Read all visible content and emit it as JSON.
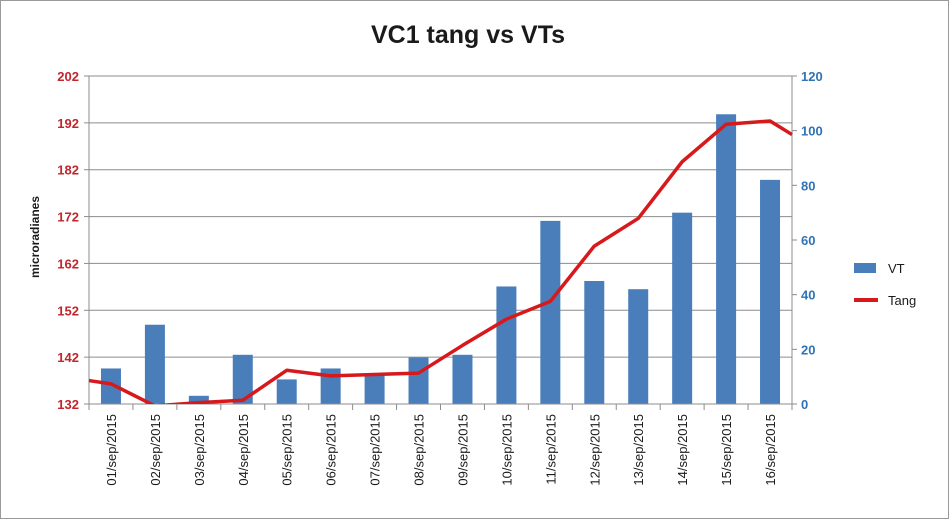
{
  "chart_data": {
    "type": "bar+line",
    "title": "VC1 tang vs VTs",
    "ylabel": "microradianes",
    "categories": [
      "01/sep/2015",
      "02/sep/2015",
      "03/sep/2015",
      "04/sep/2015",
      "05/sep/2015",
      "06/sep/2015",
      "07/sep/2015",
      "08/sep/2015",
      "09/sep/2015",
      "10/sep/2015",
      "11/sep/2015",
      "12/sep/2015",
      "13/sep/2015",
      "14/sep/2015",
      "15/sep/2015",
      "16/sep/2015"
    ],
    "y_left": {
      "ylim": [
        132,
        202
      ],
      "ticks": [
        132,
        142,
        152,
        162,
        172,
        182,
        192,
        202
      ],
      "color": "#c0262b"
    },
    "y_right": {
      "ylim": [
        0,
        120
      ],
      "ticks": [
        0,
        20,
        40,
        60,
        80,
        100,
        120
      ],
      "color": "#2e74b5"
    },
    "grid": true,
    "legend_position": "right",
    "series": [
      {
        "name": "VT",
        "type": "bar",
        "axis": "right",
        "color": "#4a7ebb",
        "values": [
          13,
          29,
          3,
          18,
          9,
          13,
          11,
          17,
          18,
          43,
          67,
          45,
          42,
          70,
          106,
          82
        ]
      },
      {
        "name": "Tang",
        "type": "line",
        "axis": "left",
        "color": "#d7191c",
        "points": [
          [
            -0.5,
            137.0
          ],
          [
            0,
            136.3
          ],
          [
            1,
            131.6
          ],
          [
            2,
            132.3
          ],
          [
            3,
            132.8
          ],
          [
            4,
            139.2
          ],
          [
            5,
            138.0
          ],
          [
            6,
            138.3
          ],
          [
            7,
            138.6
          ],
          [
            8,
            144.5
          ],
          [
            9,
            150.1
          ],
          [
            10,
            153.9
          ],
          [
            11,
            165.7
          ],
          [
            12,
            171.6
          ],
          [
            13,
            183.7
          ],
          [
            14,
            191.7
          ],
          [
            15,
            192.4
          ],
          [
            15.5,
            189.5
          ]
        ]
      }
    ]
  }
}
